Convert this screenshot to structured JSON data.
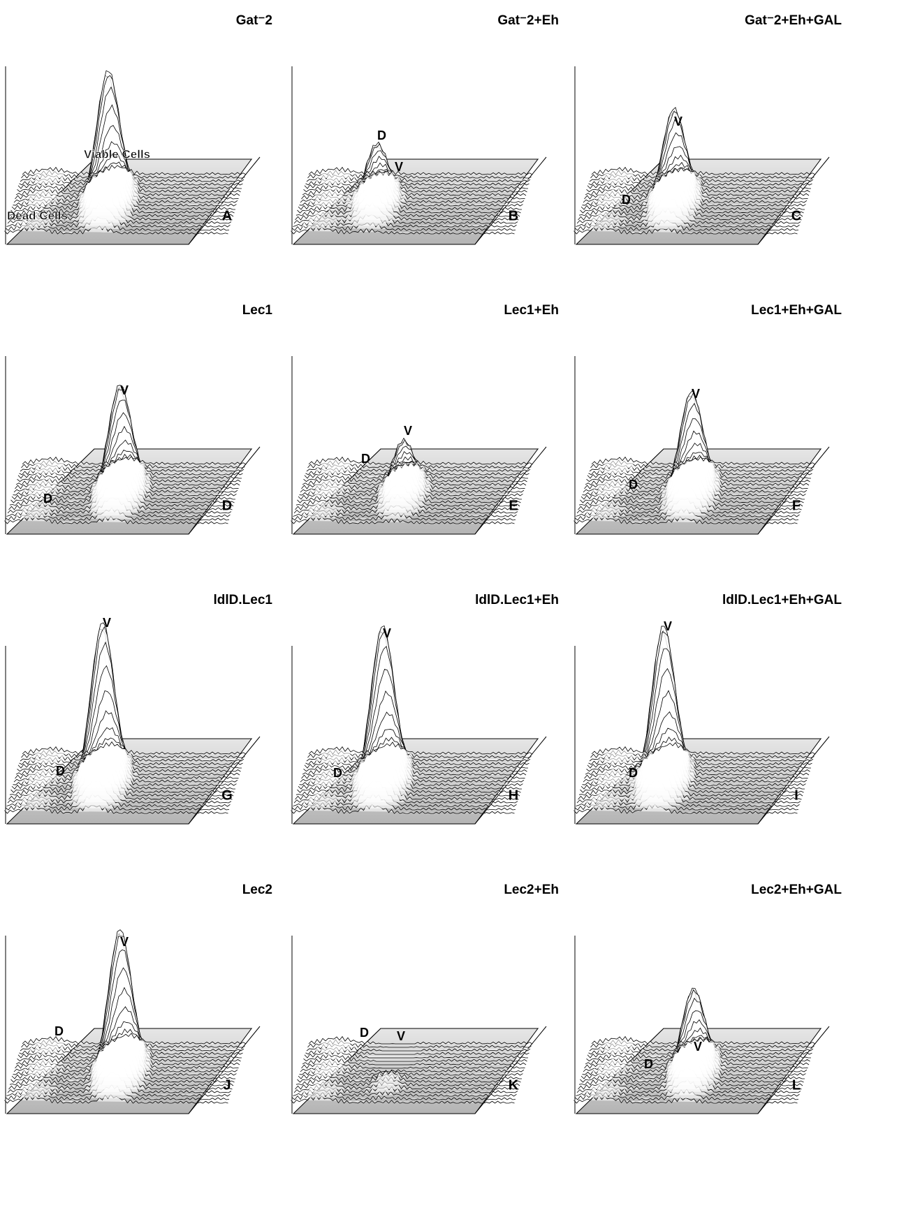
{
  "panels": [
    {
      "title": "Gat⁻2",
      "letter": "A",
      "labels": [
        "Viable Cells",
        "Dead Cells"
      ]
    },
    {
      "title": "Gat⁻2+Eh",
      "letter": "B",
      "labels": [
        "D",
        "V"
      ]
    },
    {
      "title": "Gat⁻2+Eh+GAL",
      "letter": "C",
      "labels": [
        "V",
        "D"
      ]
    },
    {
      "title": "Lec1",
      "letter": "D",
      "labels": [
        "V",
        "D"
      ]
    },
    {
      "title": "Lec1+Eh",
      "letter": "E",
      "labels": [
        "V",
        "D"
      ]
    },
    {
      "title": "Lec1+Eh+GAL",
      "letter": "F",
      "labels": [
        "V",
        "D"
      ]
    },
    {
      "title": "ldlD.Lec1",
      "letter": "G",
      "labels": [
        "V",
        "D"
      ]
    },
    {
      "title": "ldlD.Lec1+Eh",
      "letter": "H",
      "labels": [
        "V",
        "D"
      ]
    },
    {
      "title": "ldlD.Lec1+Eh+GAL",
      "letter": "I",
      "labels": [
        "V",
        "D"
      ]
    },
    {
      "title": "Lec2",
      "letter": "J",
      "labels": [
        "V",
        "D"
      ]
    },
    {
      "title": "Lec2+Eh",
      "letter": "K",
      "labels": [
        "D",
        "V"
      ]
    },
    {
      "title": "Lec2+Eh+GAL",
      "letter": "L",
      "labels": [
        "V",
        "D"
      ]
    }
  ]
}
